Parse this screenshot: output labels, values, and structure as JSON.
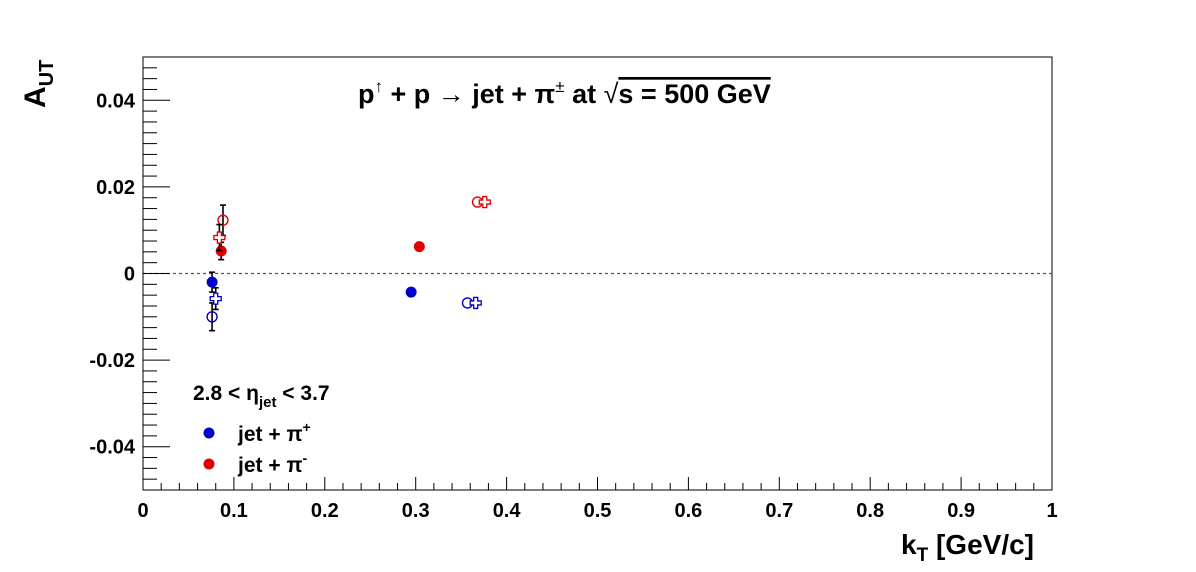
{
  "chart_data": {
    "type": "scatter",
    "title": {
      "p": "p",
      "up_arrow": "↑",
      "plus_p": " + p ",
      "arrow": "→",
      "jet_pi": " jet + π",
      "pm": "±",
      "at": " at ",
      "sqrt": "√",
      "s_eq": "s = 500 GeV"
    },
    "xlabel": {
      "main": "k",
      "sub": "T",
      "unit": " [GeV/c]"
    },
    "ylabel": {
      "main": "A",
      "sub": "UT"
    },
    "xlim": [
      0,
      1
    ],
    "ylim": [
      -0.05,
      0.05
    ],
    "x_ticks": [
      "0",
      "0.1",
      "0.2",
      "0.3",
      "0.4",
      "0.5",
      "0.6",
      "0.7",
      "0.8",
      "0.9",
      "1"
    ],
    "y_ticks": [
      "-0.04",
      "-0.02",
      "0",
      "0.02",
      "0.04"
    ],
    "reference_line": {
      "y": 0,
      "style": "dotted"
    },
    "annotation": {
      "main": "2.8 < η",
      "sub": "jet",
      "tail": " < 3.7"
    },
    "legend_placement": "bottom-left",
    "series": [
      {
        "name": "jet + π",
        "name_sup": "+",
        "color": "#0000cc",
        "marker": "filled-circle",
        "points": [
          {
            "x": 0.076,
            "y": -0.002,
            "yerr": 0.0023
          },
          {
            "x": 0.295,
            "y": -0.0043
          }
        ]
      },
      {
        "name": "jet + π",
        "name_sup": "-",
        "color": "#e00000",
        "marker": "filled-circle",
        "points": [
          {
            "x": 0.086,
            "y": 0.0052,
            "yerr": 0.002
          },
          {
            "x": 0.304,
            "y": 0.0062
          }
        ]
      },
      {
        "color": "#0000cc",
        "marker": "open-circle",
        "points": [
          {
            "x": 0.076,
            "y": -0.01,
            "yerr": 0.0032
          },
          {
            "x": 0.357,
            "y": -0.0068
          }
        ]
      },
      {
        "color": "#0000cc",
        "marker": "open-cross",
        "points": [
          {
            "x": 0.08,
            "y": -0.0058,
            "yerr": 0.0025
          },
          {
            "x": 0.366,
            "y": -0.0068
          }
        ]
      },
      {
        "color": "#e00000",
        "marker": "open-circle",
        "points": [
          {
            "x": 0.088,
            "y": 0.0123,
            "yerr": 0.0035
          },
          {
            "x": 0.368,
            "y": 0.0165
          }
        ]
      },
      {
        "color": "#e00000",
        "marker": "open-cross",
        "points": [
          {
            "x": 0.084,
            "y": 0.0083,
            "yerr": 0.003
          },
          {
            "x": 0.376,
            "y": 0.0165
          }
        ]
      }
    ]
  }
}
